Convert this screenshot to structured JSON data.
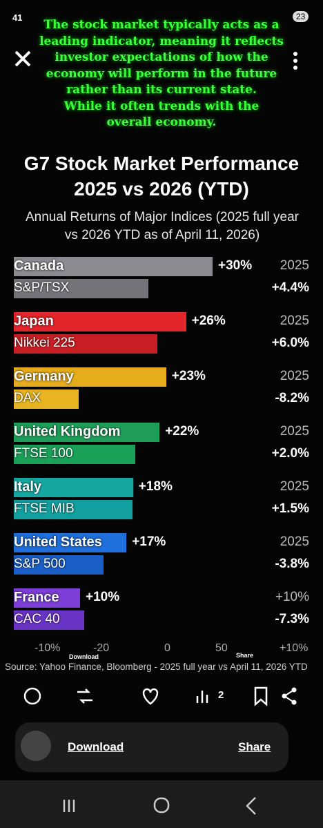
{
  "status_bar": {
    "time": "41",
    "battery": "23"
  },
  "overlay_text": [
    "The stock market typically acts as a",
    "leading indicator, meaning it reflects",
    "investor expectations of how the",
    "economy will perform in the future",
    "rather than its current state.",
    "While it often trends with the",
    "overall economy."
  ],
  "chart_data": {
    "type": "bar",
    "orientation": "horizontal",
    "title": "G7 Stock Market Performance 2025 vs 2026 (YTD)",
    "subtitle": "Annual Returns of Major Indices (2025 full year vs 2026 YTD as of April 11, 2026)",
    "categories": [
      "Canada",
      "Japan",
      "Germany",
      "United Kingdom",
      "Italy",
      "United States",
      "France"
    ],
    "indices": [
      "S&P/TSX",
      "Nikkei 225",
      "DAX",
      "FTSE 100",
      "FTSE MIB",
      "S&P 500",
      "CAC 40"
    ],
    "year_labels": [
      "2025",
      "2025",
      "2025",
      "2025",
      "2025",
      "2025",
      "+10%"
    ],
    "series": [
      {
        "colors": [
          "#8b8b92",
          "#e3262b",
          "#e6ac1c",
          "#1f9e5a",
          "#17a7a2",
          "#1f6fdc",
          "#7d3fd8"
        ],
        "values": [
          30,
          26,
          23,
          22,
          18,
          17,
          10
        ],
        "value_labels": [
          "+30%",
          "+26%",
          "+23%",
          "+22%",
          "+18%",
          "+17%",
          "+10%"
        ]
      },
      {
        "colors": [
          "#74747a",
          "#c81f24",
          "#e8b422",
          "#1ba058",
          "#13a0a0",
          "#1a5ec8",
          "#6a34c4"
        ],
        "values": [
          4.4,
          6.0,
          -8.2,
          2.0,
          1.5,
          -3.8,
          -7.3
        ],
        "value_labels": [
          "+4.4%",
          "+6.0%",
          "-8.2%",
          "+2.0%",
          "+1.5%",
          "-3.8%",
          "-7.3%"
        ]
      }
    ],
    "xticks": [
      {
        "value": -10,
        "label": "-10%"
      },
      -20,
      0,
      50,
      {
        "value": 10,
        "label": "+10%"
      }
    ],
    "source": "Source: Yahoo Finance, Bloomberg - 2025 full year vs April 11, 2026 YTD"
  },
  "overlay_labels": [
    "Download",
    "Share"
  ],
  "actions": {
    "views": "2"
  },
  "buttons": {
    "download": "Download",
    "share": "Share"
  }
}
